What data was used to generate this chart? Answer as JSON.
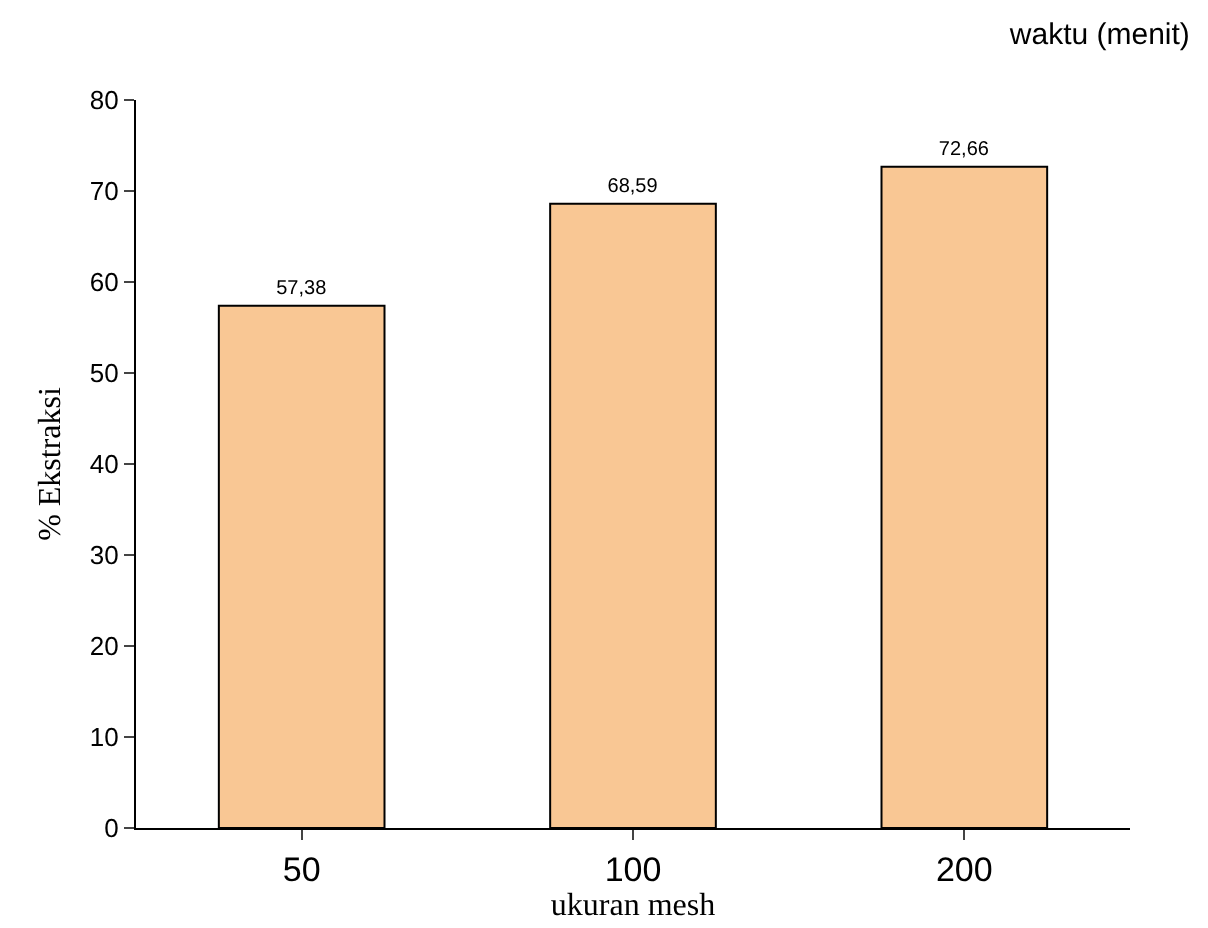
{
  "chart_data": {
    "type": "bar",
    "title": "waktu (menit)",
    "xlabel": "ukuran mesh",
    "ylabel": "% Ekstraksi",
    "categories": [
      "50",
      "100",
      "200"
    ],
    "values": [
      57.38,
      68.59,
      72.66
    ],
    "value_labels": [
      "57,38",
      "68,59",
      "72,66"
    ],
    "color": "#f9c794",
    "ylim": [
      0,
      80
    ],
    "yticks": [
      0,
      10,
      20,
      30,
      40,
      50,
      60,
      70,
      80
    ],
    "grid": false,
    "legend": false
  }
}
